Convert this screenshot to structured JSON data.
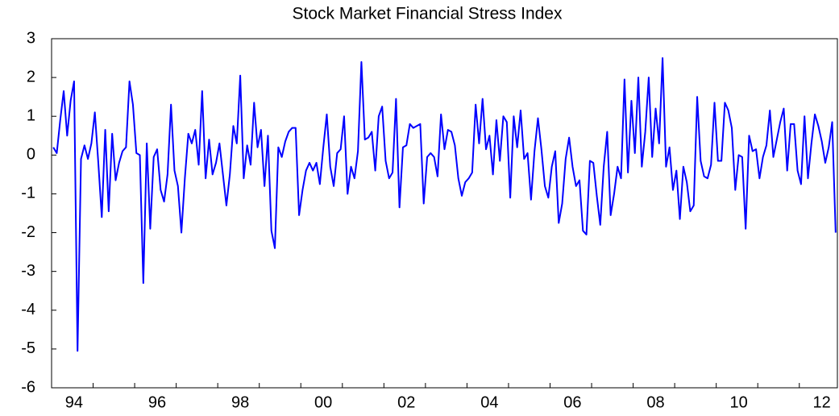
{
  "chart_data": {
    "type": "line",
    "title": "Stock Market Financial Stress Index",
    "categories": [
      null,
      null,
      null,
      null,
      null,
      null,
      "94",
      null,
      null,
      null,
      null,
      null,
      null,
      null,
      null,
      null,
      null,
      null,
      null,
      null,
      null,
      null,
      null,
      null,
      null,
      null,
      null,
      null,
      null,
      null,
      "96",
      null,
      null,
      null,
      null,
      null,
      null,
      null,
      null,
      null,
      null,
      null,
      null,
      null,
      null,
      null,
      null,
      null,
      null,
      null,
      null,
      null,
      null,
      null,
      "98",
      null,
      null,
      null,
      null,
      null,
      null,
      null,
      null,
      null,
      null,
      null,
      null,
      null,
      null,
      null,
      null,
      null,
      null,
      null,
      null,
      null,
      null,
      null,
      "00",
      null,
      null,
      null,
      null,
      null,
      null,
      null,
      null,
      null,
      null,
      null,
      null,
      null,
      null,
      null,
      null,
      null,
      null,
      null,
      null,
      null,
      null,
      null,
      "02",
      null,
      null,
      null,
      null,
      null,
      null,
      null,
      null,
      null,
      null,
      null,
      null,
      null,
      null,
      null,
      null,
      null,
      null,
      null,
      null,
      null,
      null,
      null,
      "04",
      null,
      null,
      null,
      null,
      null,
      null,
      null,
      null,
      null,
      null,
      null,
      null,
      null,
      null,
      null,
      null,
      null,
      null,
      null,
      null,
      null,
      null,
      null,
      "06",
      null,
      null,
      null,
      null,
      null,
      null,
      null,
      null,
      null,
      null,
      null,
      null,
      null,
      null,
      null,
      null,
      null,
      null,
      null,
      null,
      null,
      null,
      null,
      "08",
      null,
      null,
      null,
      null,
      null,
      null,
      null,
      null,
      null,
      null,
      null,
      null,
      null,
      null,
      null,
      null,
      null,
      null,
      null,
      null,
      null,
      null,
      null,
      "10",
      null,
      null,
      null,
      null,
      null,
      null,
      null,
      null,
      null,
      null,
      null,
      null,
      null,
      null,
      null,
      null,
      null,
      null,
      null,
      null,
      null,
      null,
      null,
      "12",
      null,
      null,
      null,
      null
    ],
    "values": [
      0.2,
      0.05,
      0.9,
      1.65,
      0.5,
      1.4,
      1.9,
      -5.05,
      -0.1,
      0.25,
      -0.1,
      0.3,
      1.1,
      -0.2,
      -1.6,
      0.65,
      -1.45,
      0.55,
      -0.65,
      -0.2,
      0.1,
      0.2,
      1.9,
      1.3,
      0.05,
      0.0,
      -3.3,
      0.3,
      -1.9,
      -0.05,
      0.15,
      -0.9,
      -1.2,
      -0.5,
      1.3,
      -0.4,
      -0.8,
      -2.0,
      -0.6,
      0.55,
      0.3,
      0.65,
      -0.25,
      1.65,
      -0.6,
      0.4,
      -0.5,
      -0.2,
      0.3,
      -0.5,
      -1.3,
      -0.5,
      0.75,
      0.3,
      2.05,
      -0.6,
      0.25,
      -0.25,
      1.35,
      0.2,
      0.65,
      -0.8,
      0.5,
      -1.95,
      -2.4,
      0.2,
      -0.05,
      0.35,
      0.6,
      0.7,
      0.7,
      -1.55,
      -0.9,
      -0.4,
      -0.2,
      -0.4,
      -0.2,
      -0.75,
      0.2,
      1.05,
      -0.3,
      -0.8,
      0.05,
      0.15,
      1.0,
      -1.0,
      -0.3,
      -0.6,
      0.1,
      2.4,
      0.4,
      0.45,
      0.6,
      -0.4,
      1.0,
      1.25,
      -0.15,
      -0.6,
      -0.45,
      1.45,
      -1.35,
      0.2,
      0.25,
      0.8,
      0.7,
      0.75,
      0.8,
      -1.25,
      -0.05,
      0.05,
      -0.05,
      -0.55,
      1.05,
      0.15,
      0.65,
      0.6,
      0.25,
      -0.6,
      -1.05,
      -0.7,
      -0.6,
      -0.45,
      1.3,
      0.3,
      1.45,
      0.15,
      0.5,
      -0.5,
      0.9,
      -0.15,
      1.0,
      0.85,
      -1.1,
      1.0,
      0.2,
      1.15,
      -0.1,
      0.05,
      -1.15,
      0.1,
      0.95,
      0.15,
      -0.8,
      -1.1,
      -0.3,
      0.1,
      -1.75,
      -1.25,
      -0.1,
      0.45,
      -0.3,
      -0.8,
      -0.65,
      -1.95,
      -2.05,
      -0.15,
      -0.2,
      -1.05,
      -1.8,
      -0.3,
      0.6,
      -1.55,
      -1.0,
      -0.3,
      -0.6,
      1.95,
      -0.45,
      1.4,
      0.05,
      2.0,
      -0.3,
      0.6,
      2.0,
      -0.05,
      1.2,
      0.3,
      2.5,
      -0.3,
      0.2,
      -0.9,
      -0.4,
      -1.65,
      -0.3,
      -0.7,
      -1.45,
      -1.3,
      1.5,
      -0.15,
      -0.55,
      -0.6,
      -0.25,
      1.35,
      -0.15,
      -0.15,
      1.35,
      1.15,
      0.7,
      -0.9,
      0.0,
      -0.05,
      -1.9,
      0.5,
      0.1,
      0.15,
      -0.6,
      -0.05,
      0.25,
      1.15,
      -0.05,
      0.4,
      0.85,
      1.2,
      -0.4,
      0.8,
      0.8,
      -0.4,
      -0.75,
      1.0,
      -0.6,
      0.3,
      1.05,
      0.75,
      0.35,
      -0.2,
      0.2,
      0.85,
      -2.0
    ],
    "color": "#0000ff",
    "ylim": [
      -6,
      3
    ],
    "yticks": [
      -6,
      -5,
      -4,
      -3,
      -2,
      -1,
      0,
      1,
      2,
      3
    ],
    "grid": false
  }
}
